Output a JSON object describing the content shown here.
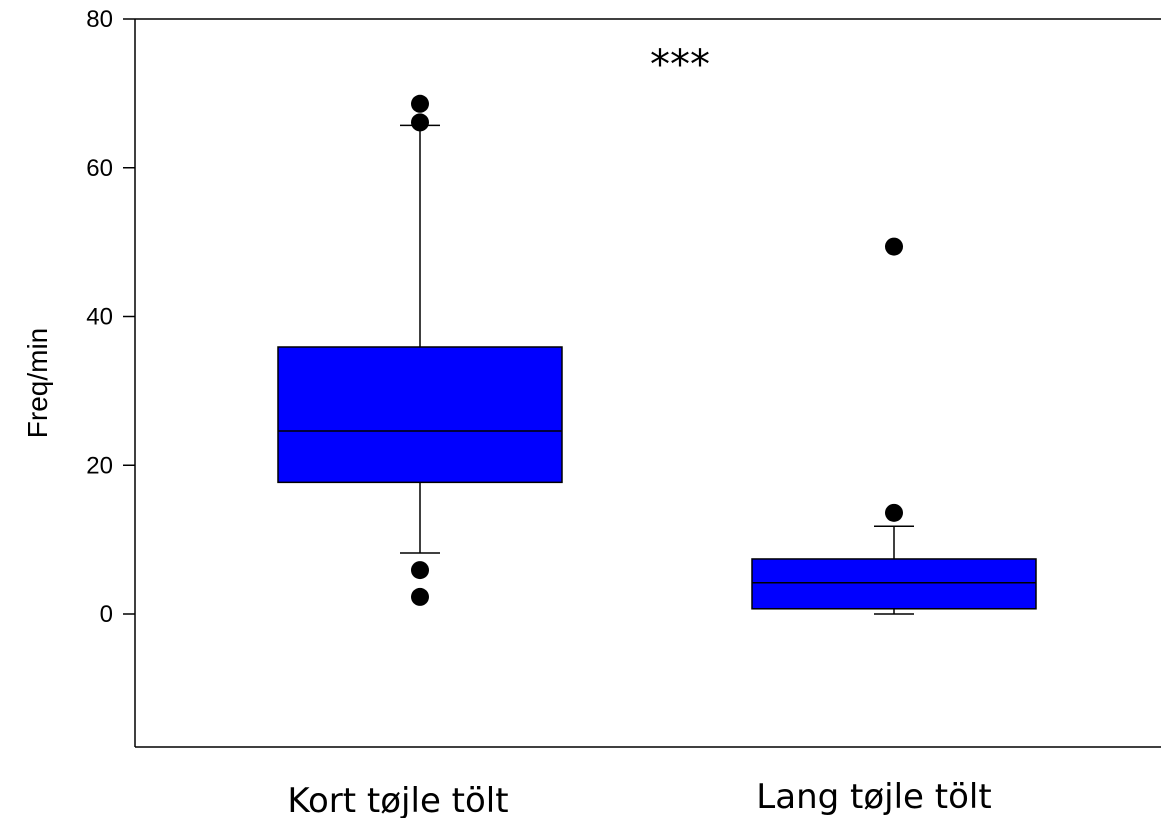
{
  "chart_data": {
    "type": "box",
    "title": "",
    "xlabel": "",
    "ylabel": "Freq/min",
    "ylim": [
      -18,
      80
    ],
    "yticks": [
      0,
      20,
      40,
      60,
      80
    ],
    "ytick_labels": [
      "0",
      "20",
      "40",
      "60",
      "80"
    ],
    "categories": [
      "Kort tøjle tölt",
      "Lang tøjle tölt"
    ],
    "boxes": [
      {
        "category": "Kort tøjle tölt",
        "whisker_low": 8.2,
        "q1": 17.7,
        "median": 24.6,
        "q3": 35.9,
        "whisker_high": 65.7,
        "outliers": [
          68.6,
          66.1,
          5.9,
          2.3
        ]
      },
      {
        "category": "Lang tøjle tölt",
        "whisker_low": 0.0,
        "q1": 0.7,
        "median": 4.2,
        "q3": 7.4,
        "whisker_high": 11.8,
        "outliers": [
          49.4,
          13.6
        ]
      }
    ],
    "box_color": "#0000ff",
    "annotation": "***",
    "grid": false,
    "legend": "none"
  }
}
